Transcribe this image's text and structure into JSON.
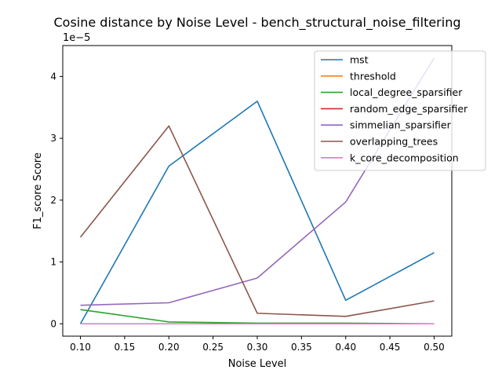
{
  "chart_data": {
    "type": "line",
    "title": "Cosine distance by Noise Level - bench_structural_noise_filtering",
    "xlabel": "Noise Level",
    "ylabel": "F1_score Score",
    "y_offset_label": "1e−5",
    "x": [
      0.1,
      0.2,
      0.3,
      0.4,
      0.5
    ],
    "x_ticks": [
      "0.10",
      "0.15",
      "0.20",
      "0.25",
      "0.30",
      "0.35",
      "0.40",
      "0.45",
      "0.50"
    ],
    "x_tick_values": [
      0.1,
      0.15,
      0.2,
      0.25,
      0.3,
      0.35,
      0.4,
      0.45,
      0.5
    ],
    "y_ticks": [
      "0",
      "1",
      "2",
      "3",
      "4"
    ],
    "y_tick_values": [
      0,
      1,
      2,
      3,
      4
    ],
    "xlim": [
      0.08,
      0.52
    ],
    "ylim": [
      -0.2,
      4.5
    ],
    "y_scale_note": "values in units of 1e-5",
    "grid": false,
    "legend_position": "top-right",
    "series": [
      {
        "name": "mst",
        "color": "#1f77b4",
        "values": [
          0.0,
          2.55,
          3.6,
          0.38,
          1.15
        ]
      },
      {
        "name": "threshold",
        "color": "#ff7f0e",
        "values": [
          0.0,
          0.0,
          0.0,
          0.0,
          0.0
        ]
      },
      {
        "name": "local_degree_sparsifier",
        "color": "#2ca02c",
        "values": [
          0.23,
          0.03,
          0.01,
          0.01,
          0.0
        ]
      },
      {
        "name": "random_edge_sparsifier",
        "color": "#d62728",
        "values": [
          0.0,
          0.0,
          0.0,
          0.0,
          0.0
        ]
      },
      {
        "name": "simmelian_sparsifier",
        "color": "#9467bd",
        "values": [
          0.3,
          0.34,
          0.74,
          1.97,
          4.3
        ]
      },
      {
        "name": "overlapping_trees",
        "color": "#8c564b",
        "values": [
          1.4,
          3.2,
          0.17,
          0.12,
          0.37
        ]
      },
      {
        "name": "k_core_decomposition",
        "color": "#e377c2",
        "values": [
          0.0,
          0.0,
          0.0,
          0.0,
          0.0
        ]
      }
    ]
  }
}
